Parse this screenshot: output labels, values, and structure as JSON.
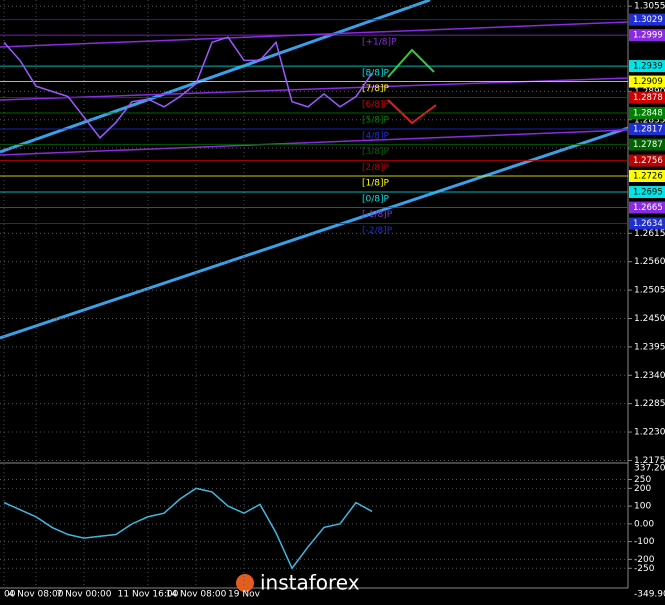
{
  "chart_data": [
    {
      "type": "line",
      "color": "#9b59ff",
      "grid": true,
      "categories": [
        "00",
        null,
        "4 Nov 08:00",
        null,
        null,
        "7 Nov 00:00",
        null,
        null,
        null,
        "11 Nov 16:00",
        null,
        null,
        "14 Nov 08:00",
        null,
        null,
        "19 Nov",
        null,
        null,
        null,
        null,
        null,
        null,
        null,
        null
      ],
      "values": [
        1.2985,
        1.295,
        1.29,
        1.289,
        1.288,
        1.284,
        1.28,
        1.283,
        1.287,
        1.2875,
        1.286,
        1.288,
        1.2905,
        1.2985,
        1.2995,
        1.295,
        1.295,
        1.2985,
        1.287,
        1.286,
        1.2885,
        1.286,
        1.288,
        1.2925
      ],
      "ylim": [
        1.2172,
        1.3067
      ],
      "yticks": [
        1.3055,
        {
          "value": 1.289,
          "label": "1.2890"
        },
        1.2835,
        {
          "value": 1.278,
          "label": "1.2780"
        },
        1.2615,
        {
          "value": 1.256,
          "label": "1.2560"
        },
        1.2505,
        {
          "value": 1.245,
          "label": "1.2450"
        },
        1.2395,
        {
          "value": 1.234,
          "label": "1.2340"
        },
        1.2285,
        {
          "value": 1.223,
          "label": "1.2230"
        },
        1.2175
      ],
      "levels": [
        {
          "value": 1.3029,
          "color": "#1f2fd0"
        },
        {
          "value": 1.2999,
          "color": "#8a2be2",
          "tag": "[+1/8]P"
        },
        {
          "value": 1.2939,
          "color": "#00e5e5",
          "tag": "[8/8]P"
        },
        {
          "value": 1.2909,
          "color": "#ffff00",
          "tag": "[7/8]P"
        },
        {
          "value": 1.2878,
          "color": "#d00000",
          "tag": "[6/8]P"
        },
        {
          "value": 1.2848,
          "color": "#008000",
          "tag": "[5/8]P"
        },
        {
          "value": 1.2817,
          "color": "#1f2fd0",
          "tag": "[4/8]P"
        },
        {
          "value": 1.2787,
          "color": "#006400",
          "tag": "[3/8]P"
        },
        {
          "value": 1.2756,
          "color": "#c00000",
          "tag": "[2/8]P"
        },
        {
          "value": 1.2726,
          "color": "#ffff00",
          "tag": "[1/8]P"
        },
        {
          "value": 1.2695,
          "color": "#00e5e5",
          "tag": "[0/8]P"
        },
        {
          "value": 1.2665,
          "color": "#8a2be2",
          "tag": "[-1/8]P"
        },
        {
          "value": 1.2634,
          "color": "#1f2fd0",
          "tag": "[-2/8]P"
        }
      ]
    },
    {
      "type": "line",
      "color": "#3fb8e0",
      "grid": true,
      "values": [
        120,
        80,
        40,
        -20,
        -60,
        -80,
        -70,
        -60,
        0,
        40,
        60,
        140,
        200,
        180,
        100,
        60,
        110,
        -50,
        -250,
        -130,
        -20,
        0,
        120,
        70
      ],
      "ylim": [
        -349.9033,
        337.2079
      ],
      "yticks": [
        250,
        200,
        100,
        {
          "value": 0,
          "label": "0.00"
        },
        -100,
        -200,
        -250
      ]
    }
  ],
  "watermark": "instaforex"
}
